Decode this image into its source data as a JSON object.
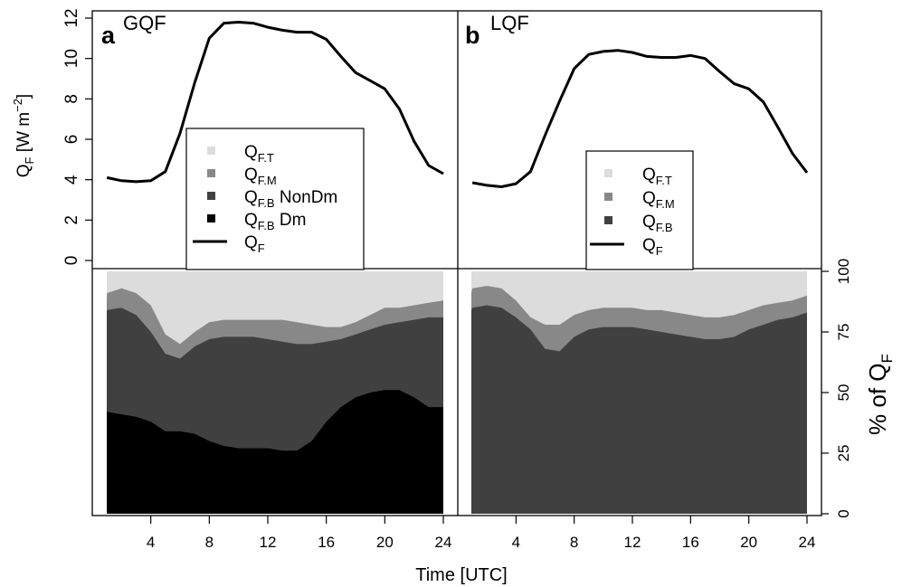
{
  "chart_data": [
    {
      "panel": "a",
      "title": "GQF",
      "type": "line",
      "x": [
        1,
        2,
        3,
        4,
        5,
        6,
        7,
        8,
        9,
        10,
        11,
        12,
        13,
        14,
        15,
        16,
        17,
        18,
        19,
        20,
        21,
        22,
        23,
        24
      ],
      "series": [
        {
          "name": "QF",
          "values": [
            4.1,
            3.95,
            3.9,
            3.95,
            4.4,
            6.3,
            8.8,
            11.0,
            11.75,
            11.8,
            11.75,
            11.55,
            11.4,
            11.3,
            11.3,
            10.95,
            10.1,
            9.3,
            8.9,
            8.5,
            7.5,
            5.9,
            4.7,
            4.3
          ]
        }
      ],
      "ylabel": "QF [W m-2]",
      "ylim": [
        0,
        12
      ],
      "yticks": [
        "0",
        "2",
        "4",
        "6",
        "8",
        "10",
        "12"
      ],
      "legend": {
        "placement": "bottom-left",
        "entries": [
          {
            "label": "QF.T",
            "color": "#dcdcdc",
            "kind": "box"
          },
          {
            "label": "QF.M",
            "color": "#888888",
            "kind": "box"
          },
          {
            "label": "QF.B NonDm",
            "color": "#404040",
            "kind": "box"
          },
          {
            "label": "QF.B Dm",
            "color": "#000000",
            "kind": "box"
          },
          {
            "label": "QF",
            "color": "#000000",
            "kind": "line"
          }
        ]
      }
    },
    {
      "panel": "b",
      "title": "LQF",
      "type": "line",
      "x": [
        1,
        2,
        3,
        4,
        5,
        6,
        7,
        8,
        9,
        10,
        11,
        12,
        13,
        14,
        15,
        16,
        17,
        18,
        19,
        20,
        21,
        22,
        23,
        24
      ],
      "series": [
        {
          "name": "QF",
          "values": [
            3.85,
            3.72,
            3.65,
            3.8,
            4.4,
            6.2,
            7.9,
            9.5,
            10.2,
            10.35,
            10.4,
            10.3,
            10.1,
            10.05,
            10.05,
            10.15,
            10.0,
            9.35,
            8.75,
            8.5,
            7.85,
            6.6,
            5.3,
            4.35
          ]
        }
      ],
      "ylim": [
        0,
        12
      ],
      "legend": {
        "placement": "bottom-right",
        "entries": [
          {
            "label": "QF.T",
            "color": "#dcdcdc",
            "kind": "box"
          },
          {
            "label": "QF.M",
            "color": "#888888",
            "kind": "box"
          },
          {
            "label": "QF.B",
            "color": "#404040",
            "kind": "box"
          },
          {
            "label": "QF",
            "color": "#000000",
            "kind": "line"
          }
        ]
      }
    },
    {
      "panel": "a-bottom",
      "type": "area",
      "x": [
        0,
        1,
        2,
        3,
        4,
        5,
        6,
        7,
        8,
        9,
        10,
        11,
        12,
        13,
        14,
        15,
        16,
        17,
        18,
        19,
        20,
        21,
        22,
        23,
        24
      ],
      "xticks": [
        "4",
        "8",
        "12",
        "16",
        "20",
        "24"
      ],
      "series": [
        {
          "name": "QF.B Dm",
          "color": "#000000",
          "values": [
            44,
            42,
            41,
            40,
            38,
            34,
            34,
            33,
            30,
            28,
            27,
            27,
            27,
            26,
            26,
            30,
            38,
            44,
            48,
            50,
            51,
            51,
            48,
            44,
            44
          ]
        },
        {
          "name": "QF.B NonDm",
          "color": "#404040",
          "values": [
            83,
            84,
            85,
            82,
            75,
            66,
            64,
            69,
            72,
            73,
            73,
            73,
            72,
            71,
            70,
            70,
            71,
            72,
            74,
            76,
            78,
            79,
            80,
            81,
            81
          ]
        },
        {
          "name": "QF.M",
          "color": "#888888",
          "values": [
            88,
            91,
            93,
            91,
            86,
            74,
            70,
            75,
            79,
            80,
            80,
            80,
            80,
            80,
            79,
            78,
            77,
            77,
            79,
            82,
            85,
            85,
            86,
            87,
            88
          ]
        },
        {
          "name": "QF.T",
          "color": "#dcdcdc",
          "values": [
            100,
            100,
            100,
            100,
            100,
            100,
            100,
            100,
            100,
            100,
            100,
            100,
            100,
            100,
            100,
            100,
            100,
            100,
            100,
            100,
            100,
            100,
            100,
            100,
            100
          ]
        }
      ]
    },
    {
      "panel": "b-bottom",
      "type": "area",
      "x": [
        0,
        1,
        2,
        3,
        4,
        5,
        6,
        7,
        8,
        9,
        10,
        11,
        12,
        13,
        14,
        15,
        16,
        17,
        18,
        19,
        20,
        21,
        22,
        23,
        24
      ],
      "xticks": [
        "4",
        "8",
        "12",
        "16",
        "20",
        "24"
      ],
      "xlabel": "Time [UTC]",
      "ylabel_right": "% of QF",
      "yticks_right": [
        "0",
        "25",
        "50",
        "75",
        "100"
      ],
      "ylim": [
        0,
        100
      ],
      "series": [
        {
          "name": "QF.B",
          "color": "#404040",
          "values": [
            84,
            85,
            86,
            85,
            81,
            76,
            68,
            67,
            73,
            76,
            77,
            77,
            77,
            76,
            75,
            74,
            73,
            72,
            72,
            73,
            76,
            78,
            80,
            81,
            83
          ]
        },
        {
          "name": "QF.M",
          "color": "#888888",
          "values": [
            91,
            93,
            94,
            93,
            88,
            81,
            78,
            78,
            82,
            84,
            85,
            85,
            85,
            84,
            84,
            83,
            82,
            81,
            81,
            82,
            84,
            86,
            87,
            88,
            90
          ]
        },
        {
          "name": "QF.T",
          "color": "#dcdcdc",
          "values": [
            100,
            100,
            100,
            100,
            100,
            100,
            100,
            100,
            100,
            100,
            100,
            100,
            100,
            100,
            100,
            100,
            100,
            100,
            100,
            100,
            100,
            100,
            100,
            100,
            100
          ]
        }
      ]
    }
  ]
}
